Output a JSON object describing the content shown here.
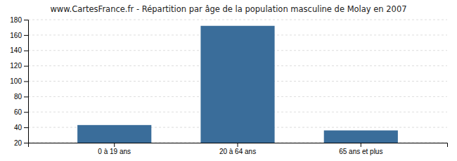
{
  "chart_data": {
    "type": "bar",
    "title": "www.CartesFrance.fr - Répartition par âge de la population masculine de Molay en 2007",
    "categories": [
      "0 à 19 ans",
      "20 à 64 ans",
      "65 ans et plus"
    ],
    "values": [
      43,
      172,
      36
    ],
    "color": "#3a6d9a",
    "ylim": [
      20,
      180
    ],
    "yticks": [
      20,
      40,
      60,
      80,
      100,
      120,
      140,
      160,
      180
    ],
    "grid": true
  }
}
